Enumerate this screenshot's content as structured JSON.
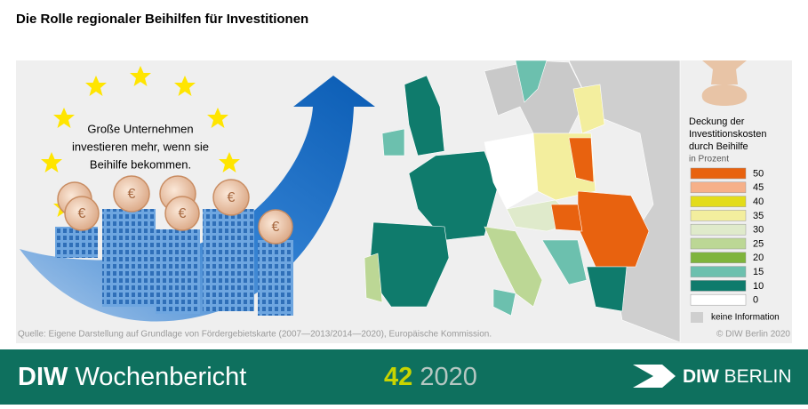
{
  "header": {
    "title": "Die Rolle regionaler Beihilfen für Investitionen"
  },
  "illustration": {
    "text_lines": [
      "Große Unternehmen",
      "investieren mehr, wenn sie",
      "Beihilfe bekommen."
    ],
    "coin_symbol": "€"
  },
  "legend": {
    "title_lines": [
      "Deckung der",
      "Investitionskosten",
      "durch Beihilfe"
    ],
    "unit": "in Prozent",
    "items": [
      {
        "value": 50,
        "color": "#e8620f"
      },
      {
        "value": 45,
        "color": "#f6b089"
      },
      {
        "value": 40,
        "color": "#e3dc1a"
      },
      {
        "value": 35,
        "color": "#f3ee9e"
      },
      {
        "value": 30,
        "color": "#dfeacb"
      },
      {
        "value": 25,
        "color": "#bcd795"
      },
      {
        "value": 20,
        "color": "#7fb43c"
      },
      {
        "value": 15,
        "color": "#6cc0ae"
      },
      {
        "value": 10,
        "color": "#0f7b6c"
      },
      {
        "value": 0,
        "color": "#ffffff"
      }
    ],
    "no_info": "keine Information"
  },
  "source": "Quelle: Eigene Darstellung auf Grundlage von Fördergebietskarte (2007—2013/2014—2020), Europäische Kommission.",
  "copyright": "© DIW Berlin 2020",
  "footer": {
    "brand_bold": "DIW",
    "brand": "Wochenbericht",
    "issue": "42",
    "year": "2020",
    "logo_bold": "DIW",
    "logo": "BERLIN"
  }
}
